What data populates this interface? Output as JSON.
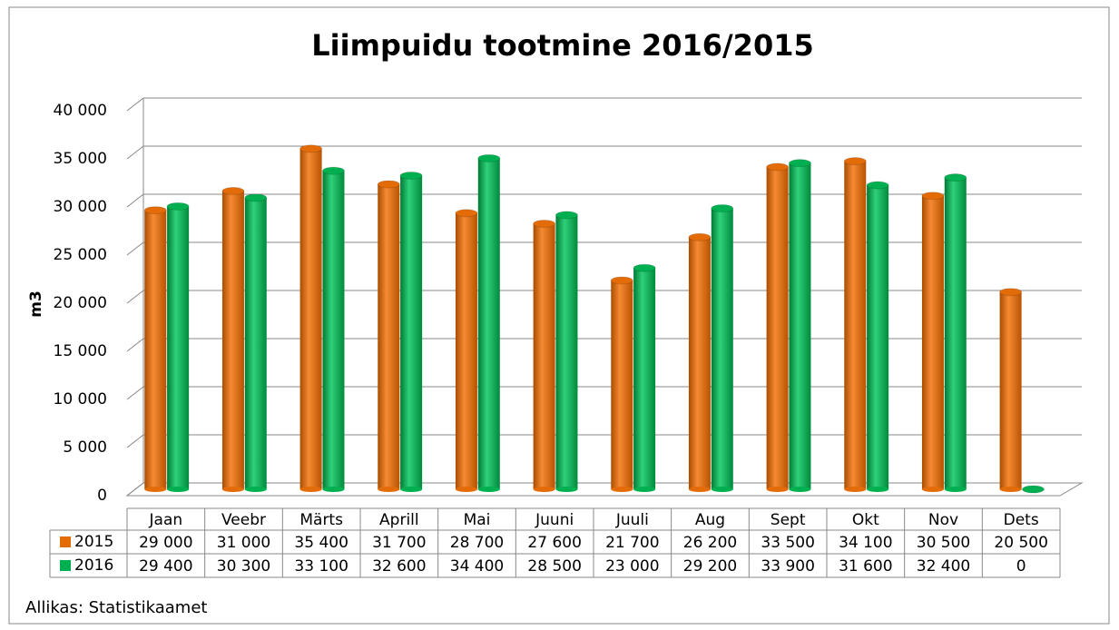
{
  "chart_data": {
    "type": "bar",
    "title": "Liimpuidu tootmine 2016/2015",
    "y_label": "m3",
    "source": "Allikas: Statistikaamet",
    "categories": [
      "Jaan",
      "Veebr",
      "Märts",
      "Aprill",
      "Mai",
      "Juuni",
      "Juuli",
      "Aug",
      "Sept",
      "Okt",
      "Nov",
      "Dets"
    ],
    "series": [
      {
        "name": "2015",
        "color": "#e36c09",
        "values": [
          29000,
          31000,
          35400,
          31700,
          28700,
          27600,
          21700,
          26200,
          33500,
          34100,
          30500,
          20500
        ],
        "value_labels": [
          "29 000",
          "31 000",
          "35 400",
          "31 700",
          "28 700",
          "27 600",
          "21 700",
          "26 200",
          "33 500",
          "34 100",
          "30 500",
          "20 500"
        ]
      },
      {
        "name": "2016",
        "color": "#00b050",
        "values": [
          29400,
          30300,
          33100,
          32600,
          34400,
          28500,
          23000,
          29200,
          33900,
          31600,
          32400,
          0
        ],
        "value_labels": [
          "29 400",
          "30 300",
          "33 100",
          "32 600",
          "34 400",
          "28 500",
          "23 000",
          "29 200",
          "33 900",
          "31 600",
          "32 400",
          "0"
        ]
      }
    ],
    "ylim": [
      0,
      40000
    ],
    "yticks": [
      0,
      {
        "value": 5000,
        "label": "5 000"
      },
      {
        "value": 10000,
        "label": "10 000"
      },
      {
        "value": 15000,
        "label": "15 000"
      },
      {
        "value": 20000,
        "label": "20 000"
      },
      {
        "value": 25000,
        "label": "25 000"
      },
      {
        "value": 30000,
        "label": "30 000"
      },
      {
        "value": 35000,
        "label": "35 000"
      },
      {
        "value": 40000,
        "label": "40 000"
      }
    ],
    "grid": true,
    "data_table": true
  }
}
